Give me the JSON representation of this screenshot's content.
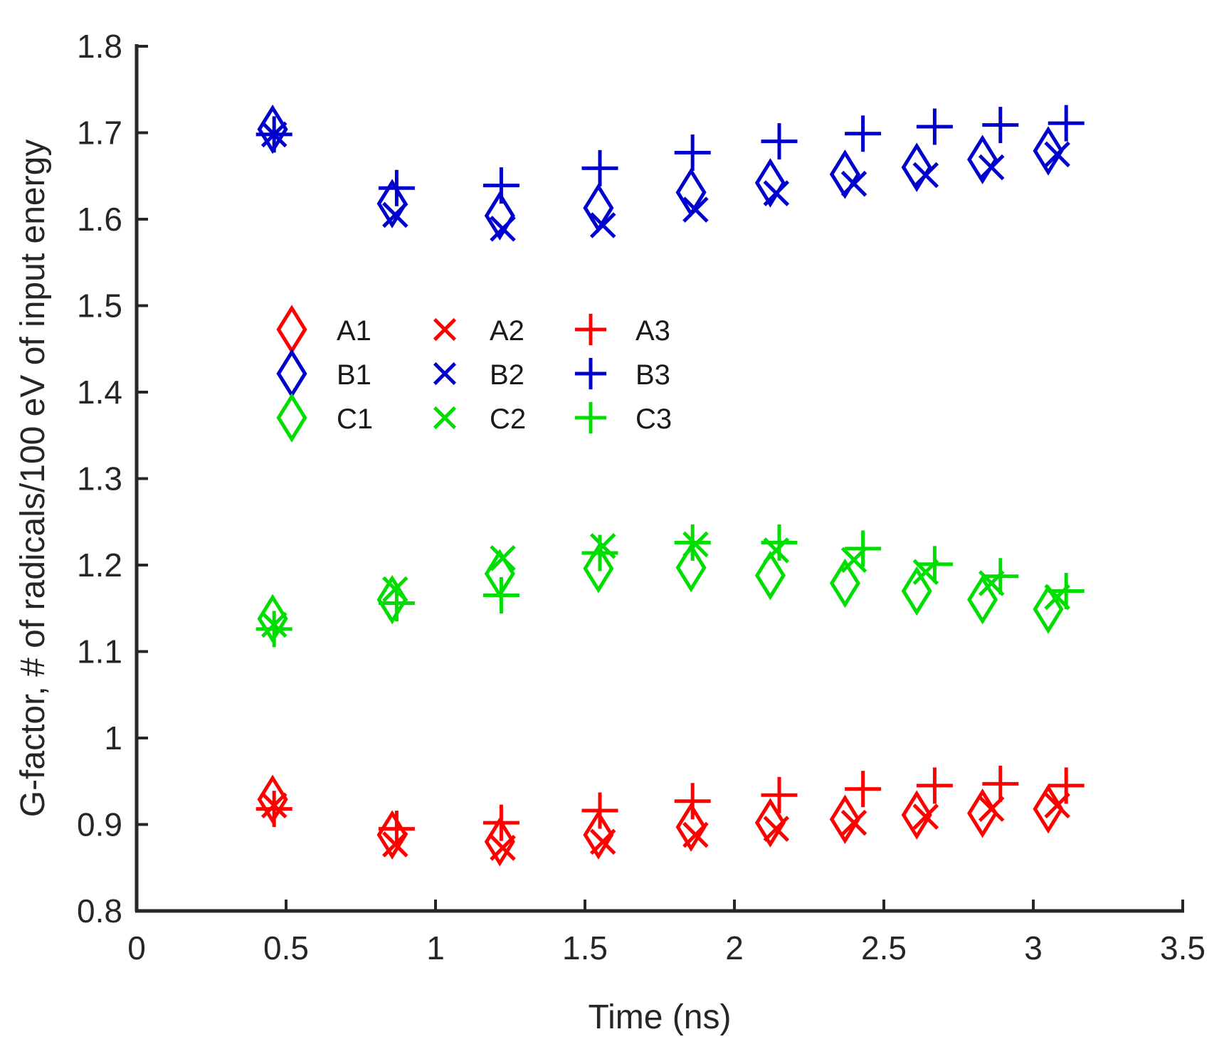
{
  "chart_data": {
    "type": "scatter",
    "title": "",
    "xlabel": "Time (ns)",
    "ylabel": "G-factor, # of radicals/100 eV of input energy",
    "xlim": [
      0,
      3.5
    ],
    "ylim": [
      0.8,
      1.8
    ],
    "xticks": [
      0,
      0.5,
      1,
      1.5,
      2,
      2.5,
      3,
      3.5
    ],
    "xtick_labels": [
      "0",
      "0.5",
      "1",
      "1.5",
      "2",
      "2.5",
      "3",
      "3.5"
    ],
    "yticks": [
      0.8,
      0.9,
      1.0,
      1.1,
      1.2,
      1.3,
      1.4,
      1.5,
      1.6,
      1.7,
      1.8
    ],
    "ytick_labels": [
      "0.8",
      "0.9",
      "1",
      "1.1",
      "1.2",
      "1.3",
      "1.4",
      "1.5",
      "1.6",
      "1.7",
      "1.8"
    ],
    "grid": false,
    "legend_position": "inside upper-left, 3 columns",
    "colors": {
      "A": "#ff0000",
      "B": "#0000cc",
      "C": "#00dd00"
    },
    "series": [
      {
        "name": "A1",
        "marker": "diamond",
        "color": "#ff0000",
        "x": [
          0.455,
          0.855,
          1.215,
          1.545,
          1.855,
          2.12,
          2.37,
          2.61,
          2.83,
          3.05
        ],
        "y": [
          0.929,
          0.888,
          0.88,
          0.888,
          0.897,
          0.902,
          0.906,
          0.911,
          0.913,
          0.918
        ]
      },
      {
        "name": "A2",
        "marker": "x",
        "color": "#ff0000",
        "x": [
          0.46,
          0.865,
          1.225,
          1.56,
          1.87,
          2.14,
          2.4,
          2.64,
          2.86,
          3.08
        ],
        "y": [
          0.922,
          0.877,
          0.873,
          0.88,
          0.888,
          0.895,
          0.902,
          0.909,
          0.918,
          0.922
        ]
      },
      {
        "name": "A3",
        "marker": "plus",
        "color": "#ff0000",
        "x": [
          0.46,
          0.87,
          1.22,
          1.55,
          1.86,
          2.15,
          2.43,
          2.67,
          2.89,
          3.11
        ],
        "y": [
          0.918,
          0.895,
          0.902,
          0.916,
          0.927,
          0.934,
          0.941,
          0.945,
          0.947,
          0.945
        ]
      },
      {
        "name": "B1",
        "marker": "diamond",
        "color": "#0000cc",
        "x": [
          0.455,
          0.855,
          1.215,
          1.545,
          1.855,
          2.12,
          2.37,
          2.61,
          2.83,
          3.05
        ],
        "y": [
          1.704,
          1.618,
          1.604,
          1.613,
          1.631,
          1.642,
          1.652,
          1.66,
          1.669,
          1.679
        ]
      },
      {
        "name": "B2",
        "marker": "x",
        "color": "#0000cc",
        "x": [
          0.46,
          0.865,
          1.225,
          1.56,
          1.87,
          2.14,
          2.4,
          2.64,
          2.86,
          3.08
        ],
        "y": [
          1.698,
          1.605,
          1.589,
          1.593,
          1.611,
          1.63,
          1.641,
          1.651,
          1.66,
          1.675
        ]
      },
      {
        "name": "B3",
        "marker": "plus",
        "color": "#0000cc",
        "x": [
          0.46,
          0.87,
          1.22,
          1.55,
          1.86,
          2.15,
          2.43,
          2.67,
          2.89,
          3.11
        ],
        "y": [
          1.698,
          1.636,
          1.639,
          1.659,
          1.677,
          1.69,
          1.699,
          1.707,
          1.709,
          1.711
        ]
      },
      {
        "name": "C1",
        "marker": "diamond",
        "color": "#00dd00",
        "x": [
          0.455,
          0.855,
          1.215,
          1.545,
          1.855,
          2.12,
          2.37,
          2.61,
          2.83,
          3.05
        ],
        "y": [
          1.138,
          1.16,
          1.19,
          1.196,
          1.197,
          1.188,
          1.179,
          1.17,
          1.16,
          1.149
        ]
      },
      {
        "name": "C2",
        "marker": "x",
        "color": "#00dd00",
        "x": [
          0.46,
          0.865,
          1.225,
          1.56,
          1.87,
          2.14,
          2.4,
          2.64,
          2.86,
          3.08
        ],
        "y": [
          1.131,
          1.172,
          1.208,
          1.222,
          1.224,
          1.217,
          1.206,
          1.192,
          1.179,
          1.163
        ]
      },
      {
        "name": "C3",
        "marker": "plus",
        "color": "#00dd00",
        "x": [
          0.46,
          0.87,
          1.22,
          1.55,
          1.86,
          2.15,
          2.43,
          2.67,
          2.89,
          3.11
        ],
        "y": [
          1.126,
          1.156,
          1.165,
          1.214,
          1.226,
          1.226,
          1.219,
          1.201,
          1.187,
          1.17
        ]
      }
    ],
    "legend": {
      "columns": 3,
      "entries": [
        "A1",
        "A2",
        "A3",
        "B1",
        "B2",
        "B3",
        "C1",
        "C2",
        "C3"
      ]
    }
  }
}
